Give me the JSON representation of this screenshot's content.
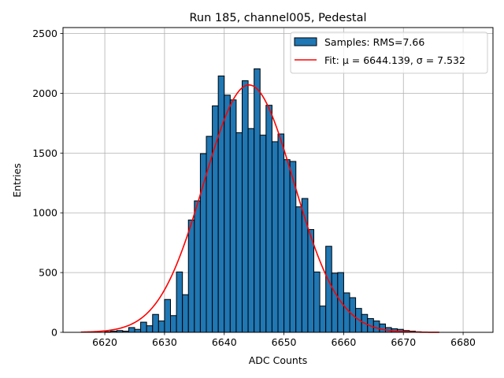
{
  "chart_data": {
    "type": "bar",
    "title": "Run 185, channel005, Pedestal",
    "xlabel": "ADC Counts",
    "ylabel": "Entries",
    "xlim": [
      6613,
      6685
    ],
    "ylim": [
      0,
      2550
    ],
    "xticks": [
      "6620",
      "6630",
      "6640",
      "6650",
      "6660",
      "6670",
      "6680"
    ],
    "yticks": [
      "0",
      "500",
      "1000",
      "1500",
      "2000",
      "2500"
    ],
    "grid": true,
    "legend_position": "top-right",
    "bin_width": 1,
    "series": [
      {
        "name": "Samples: RMS=7.66",
        "kind": "histogram",
        "color": "#1f77b4",
        "edge_color": "#000000",
        "bin_starts": [
          6620,
          6621,
          6622,
          6623,
          6624,
          6625,
          6626,
          6627,
          6628,
          6629,
          6630,
          6631,
          6632,
          6633,
          6634,
          6635,
          6636,
          6637,
          6638,
          6639,
          6640,
          6641,
          6642,
          6643,
          6644,
          6645,
          6646,
          6647,
          6648,
          6649,
          6650,
          6651,
          6652,
          6653,
          6654,
          6655,
          6656,
          6657,
          6658,
          6659,
          6660,
          6661,
          6662,
          6663,
          6664,
          6665,
          6666,
          6667,
          6668,
          6669,
          6670,
          6671,
          6672,
          6673,
          6674,
          6675,
          6676,
          6677
        ],
        "values": [
          5,
          10,
          15,
          10,
          40,
          25,
          85,
          55,
          150,
          95,
          275,
          140,
          505,
          315,
          940,
          1100,
          1495,
          1640,
          1895,
          2145,
          1985,
          1945,
          1670,
          2105,
          1705,
          2205,
          1650,
          1900,
          1595,
          1660,
          1445,
          1430,
          1050,
          1120,
          860,
          505,
          220,
          720,
          495,
          500,
          330,
          290,
          200,
          150,
          115,
          95,
          70,
          40,
          30,
          25,
          15,
          10,
          5,
          2,
          0,
          0,
          0,
          0
        ]
      },
      {
        "name": "Fit: μ = 6644.139, σ = 7.532",
        "kind": "gaussian_fit",
        "color": "#ff0000",
        "mu": 6644.139,
        "sigma": 7.532,
        "amplitude": 2070,
        "x_range": [
          6616,
          6676
        ]
      }
    ]
  }
}
